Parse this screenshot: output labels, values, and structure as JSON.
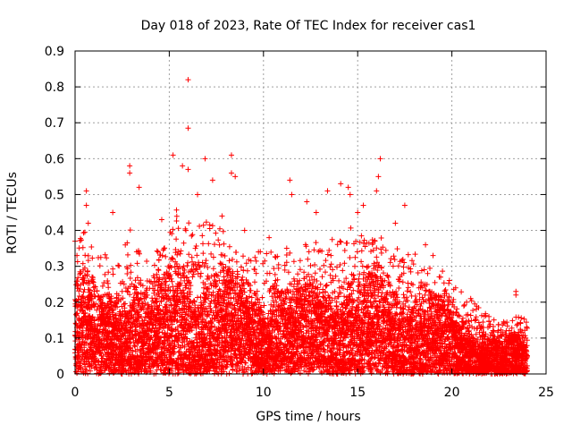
{
  "chart_data": {
    "type": "scatter",
    "title": "Day 018 of 2023, Rate Of TEC Index for receiver cas1",
    "xlabel": "GPS time / hours",
    "ylabel": "ROTI / TECUs",
    "xlim": [
      0,
      25
    ],
    "ylim": [
      0,
      0.9
    ],
    "xticks": [
      "0",
      "5",
      "10",
      "15",
      "20",
      "25"
    ],
    "yticks": [
      "0",
      "0.1",
      "0.2",
      "0.3",
      "0.4",
      "0.5",
      "0.6",
      "0.7",
      "0.8",
      "0.9"
    ],
    "grid": true,
    "marker": "+",
    "point_color": "#ff0000",
    "sampling_minutes": 1,
    "envelope": {
      "x": [
        0,
        0.5,
        1,
        1.5,
        2,
        2.5,
        3,
        3.5,
        4,
        4.5,
        5,
        5.5,
        6,
        6.5,
        7,
        7.5,
        8,
        8.5,
        9,
        9.5,
        10,
        10.5,
        11,
        11.5,
        12,
        12.5,
        13,
        13.5,
        14,
        14.5,
        15,
        15.5,
        16,
        16.5,
        17,
        17.5,
        18,
        18.5,
        19,
        19.5,
        20,
        20.5,
        21,
        21.5,
        22,
        22.5,
        23,
        23.5,
        24
      ],
      "low": [
        0.06,
        0.05,
        0.05,
        0.06,
        0.05,
        0.06,
        0.05,
        0.06,
        0.05,
        0.05,
        0.04,
        0.05,
        0.05,
        0.05,
        0.06,
        0.06,
        0.06,
        0.05,
        0.06,
        0.05,
        0.05,
        0.05,
        0.05,
        0.04,
        0.05,
        0.05,
        0.05,
        0.05,
        0.04,
        0.04,
        0.04,
        0.04,
        0.04,
        0.04,
        0.04,
        0.04,
        0.03,
        0.03,
        0.03,
        0.03,
        0.03,
        0.02,
        0.02,
        0.02,
        0.02,
        0.01,
        0.01,
        0.01,
        0.01
      ],
      "high": [
        0.3,
        0.32,
        0.28,
        0.27,
        0.26,
        0.28,
        0.33,
        0.3,
        0.27,
        0.3,
        0.33,
        0.38,
        0.36,
        0.32,
        0.38,
        0.33,
        0.32,
        0.3,
        0.28,
        0.28,
        0.27,
        0.28,
        0.3,
        0.27,
        0.28,
        0.3,
        0.3,
        0.3,
        0.32,
        0.33,
        0.32,
        0.32,
        0.33,
        0.3,
        0.28,
        0.28,
        0.27,
        0.25,
        0.24,
        0.23,
        0.21,
        0.19,
        0.17,
        0.15,
        0.13,
        0.12,
        0.12,
        0.13,
        0.13
      ]
    },
    "outliers": [
      {
        "x": 6.0,
        "y": 0.82
      },
      {
        "x": 6.0,
        "y": 0.685
      },
      {
        "x": 5.2,
        "y": 0.61
      },
      {
        "x": 5.7,
        "y": 0.58
      },
      {
        "x": 6.0,
        "y": 0.57
      },
      {
        "x": 6.5,
        "y": 0.5
      },
      {
        "x": 6.9,
        "y": 0.6
      },
      {
        "x": 7.3,
        "y": 0.54
      },
      {
        "x": 8.3,
        "y": 0.61
      },
      {
        "x": 8.3,
        "y": 0.56
      },
      {
        "x": 8.5,
        "y": 0.55
      },
      {
        "x": 2.9,
        "y": 0.58
      },
      {
        "x": 2.9,
        "y": 0.56
      },
      {
        "x": 3.4,
        "y": 0.52
      },
      {
        "x": 0.6,
        "y": 0.51
      },
      {
        "x": 0.6,
        "y": 0.47
      },
      {
        "x": 0.7,
        "y": 0.42
      },
      {
        "x": 11.4,
        "y": 0.54
      },
      {
        "x": 11.5,
        "y": 0.5
      },
      {
        "x": 12.3,
        "y": 0.48
      },
      {
        "x": 13.4,
        "y": 0.51
      },
      {
        "x": 14.1,
        "y": 0.53
      },
      {
        "x": 14.5,
        "y": 0.52
      },
      {
        "x": 14.6,
        "y": 0.5
      },
      {
        "x": 15.0,
        "y": 0.45
      },
      {
        "x": 15.3,
        "y": 0.47
      },
      {
        "x": 16.2,
        "y": 0.6
      },
      {
        "x": 16.1,
        "y": 0.55
      },
      {
        "x": 16.0,
        "y": 0.51
      },
      {
        "x": 17.5,
        "y": 0.47
      },
      {
        "x": 17.0,
        "y": 0.42
      },
      {
        "x": 18.6,
        "y": 0.36
      },
      {
        "x": 19.0,
        "y": 0.33
      },
      {
        "x": 19.4,
        "y": 0.27
      },
      {
        "x": 20.2,
        "y": 0.24
      },
      {
        "x": 21.0,
        "y": 0.21
      },
      {
        "x": 23.4,
        "y": 0.23
      },
      {
        "x": 23.4,
        "y": 0.22
      },
      {
        "x": 2.0,
        "y": 0.45
      },
      {
        "x": 4.6,
        "y": 0.43
      },
      {
        "x": 7.8,
        "y": 0.44
      },
      {
        "x": 9.0,
        "y": 0.4
      },
      {
        "x": 10.3,
        "y": 0.38
      },
      {
        "x": 12.8,
        "y": 0.45
      },
      {
        "x": 0.0,
        "y": 0.37
      },
      {
        "x": 0.1,
        "y": 0.33
      }
    ]
  }
}
